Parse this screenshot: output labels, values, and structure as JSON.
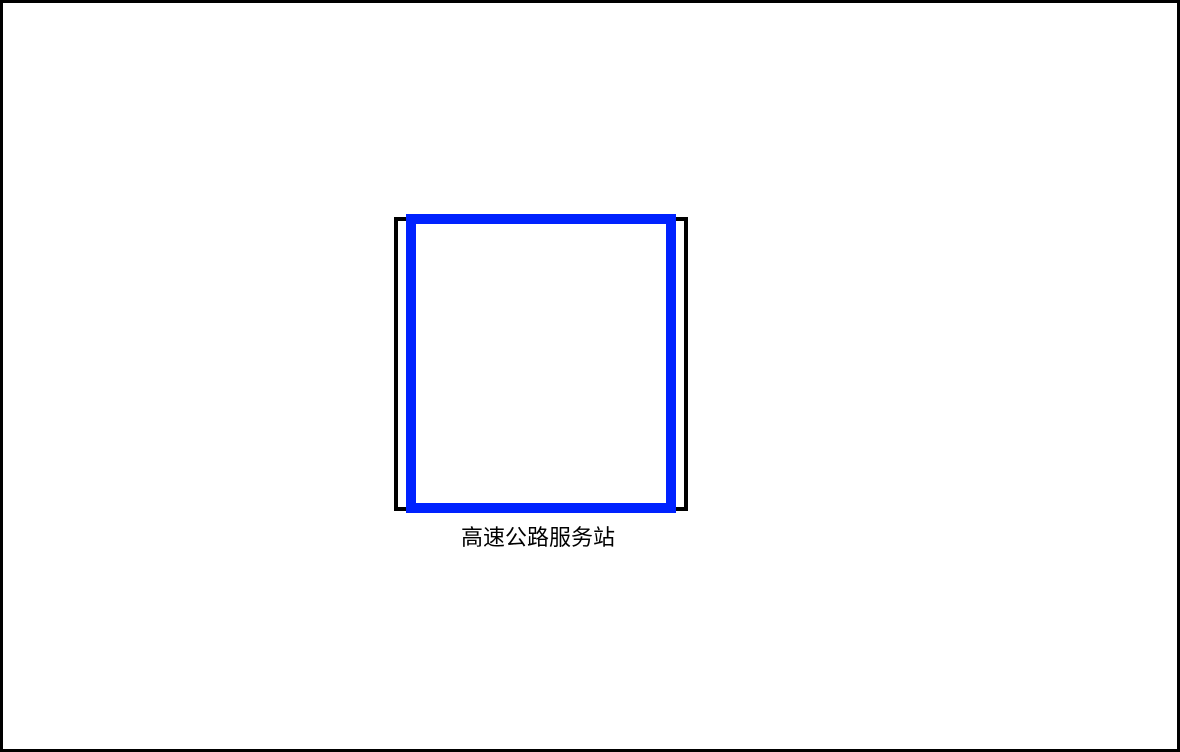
{
  "diagram": {
    "label": "高速公路服务站",
    "colors": {
      "outer_stroke": "#000000",
      "inner_stroke": "#0022ff",
      "background": "#ffffff",
      "frame": "#000000"
    }
  }
}
